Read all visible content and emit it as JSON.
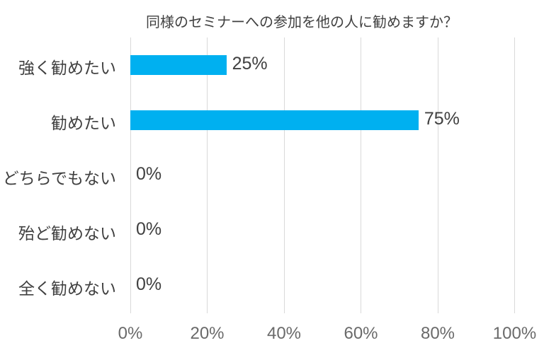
{
  "chart_data": {
    "type": "bar",
    "orientation": "horizontal",
    "title": "同様のセミナーへの参加を他の人に勧めますか？",
    "categories": [
      "強く勧めたい",
      "勧めたい",
      "どちらでもない",
      "殆ど勧めない",
      "全く勧めない"
    ],
    "values": [
      25,
      75,
      0,
      0,
      0
    ],
    "value_labels": [
      "25%",
      "75%",
      "0%",
      "0%",
      "0%"
    ],
    "xlabel": "",
    "ylabel": "",
    "xlim": [
      0,
      100
    ],
    "x_tick_values": [
      0,
      20,
      40,
      60,
      80,
      100
    ],
    "x_tick_labels": [
      "0%",
      "20%",
      "40%",
      "60%",
      "80%",
      "100%"
    ],
    "grid": "vertical-on",
    "legend": "none",
    "colors": {
      "bar": "#00b0f0",
      "gridline": "#d9d9d9",
      "label_text": "#404040",
      "axis_text": "#6a6a6a",
      "background": "#ffffff"
    }
  }
}
